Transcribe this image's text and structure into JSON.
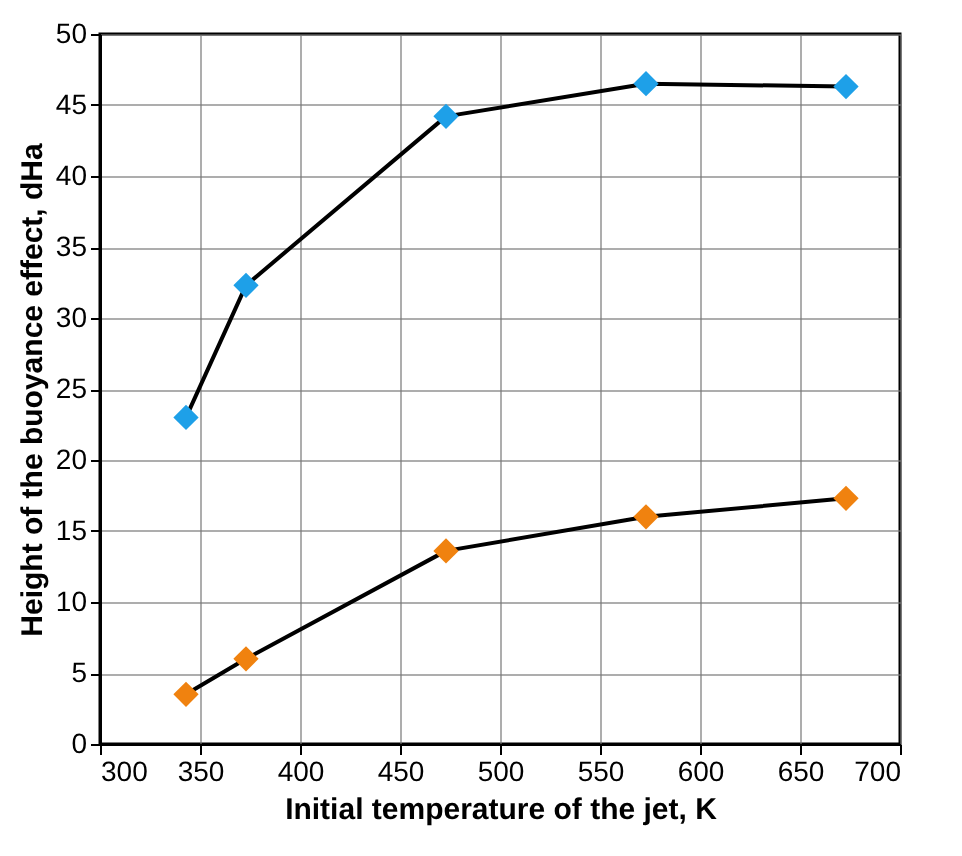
{
  "chart_data": {
    "type": "line",
    "xlabel": "Initial temperature of the jet, K",
    "ylabel": "Height of the buoyance effect, dHa",
    "x": [
      343,
      373,
      473,
      573,
      673
    ],
    "series": [
      {
        "color": "#1ea0e8",
        "values": [
          23,
          32.3,
          44.2,
          46.5,
          46.3
        ]
      },
      {
        "color": "#f0820f",
        "values": [
          3.5,
          6,
          13.6,
          16,
          17.3
        ]
      }
    ],
    "xlim": [
      300,
      700
    ],
    "xticks": [
      300,
      350,
      400,
      450,
      500,
      550,
      600,
      650,
      700
    ],
    "ylim": [
      0,
      50
    ],
    "yticks": [
      0,
      5,
      10,
      15,
      20,
      25,
      30,
      35,
      40,
      45,
      50
    ],
    "grid": true,
    "marker": "diamond",
    "line_style": "solid"
  }
}
